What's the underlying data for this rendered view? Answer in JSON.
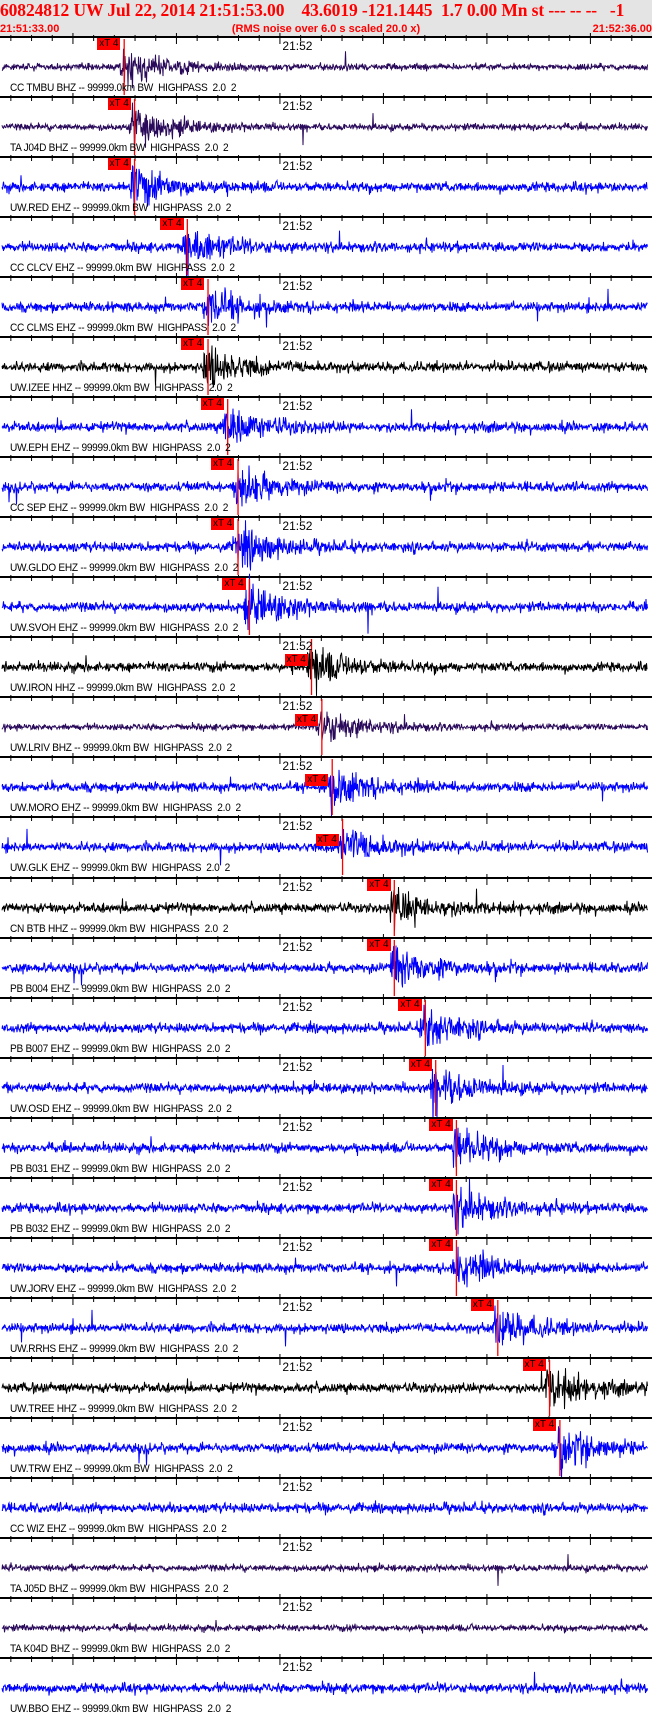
{
  "header": {
    "title": "60824812 UW Jul 22, 2014 21:51:53.00    43.6019 -121.1445  1.7 0.00 Mn st --- -- --   -1",
    "start_time": "21:51:33.00",
    "note": "(RMS noise over 6.0 s scaled 20.0 x)",
    "end_time": "21:52:36.00"
  },
  "colors": {
    "header_text": "#ff0000",
    "header_bg": "#e4e4e4",
    "pick": "#ff0000",
    "EHZ": "#0000ff",
    "HHZ": "#000000",
    "BHZ": "#2a0a5a"
  },
  "chart_data": {
    "type": "line",
    "subtype": "seismogram record section",
    "x_axis": {
      "range": [
        "21:51:33.00",
        "21:52:36.00"
      ],
      "tick_label": "21:52",
      "major_tick_interval_s": 10,
      "minor_tick_interval_s": 2
    },
    "pick_label": "xT 4",
    "traces": [
      {
        "label": "CC TMBU BHZ -- 99999.0km BW  HIGHPASS  2.0  2",
        "channel": "BHZ",
        "pick": "21:51:45.0"
      },
      {
        "label": "TA J04D BHZ -- 99999.0km BW  HIGHPASS  2.0  2",
        "channel": "BHZ",
        "pick": "21:51:46.0"
      },
      {
        "label": "UW.RED EHZ -- 99999.0km BW  HIGHPASS  2.0  2",
        "channel": "EHZ",
        "pick": "21:51:46.0"
      },
      {
        "label": "CC CLCV EHZ -- 99999.0km BW  HIGHPASS  2.0  2",
        "channel": "EHZ",
        "pick": "21:51:51.1"
      },
      {
        "label": "CC CLMS EHZ -- 99999.0km BW  HIGHPASS  2.0  2",
        "channel": "EHZ",
        "pick": "21:51:53.1"
      },
      {
        "label": "UW.IZEE HHZ -- 99999.0km BW  HIGHPASS  2.0  2",
        "channel": "HHZ",
        "pick": "21:51:53.1"
      },
      {
        "label": "UW.EPH EHZ -- 99999.0km BW  HIGHPASS  2.0  2",
        "channel": "EHZ",
        "pick": "21:51:55.0"
      },
      {
        "label": "CC SEP EHZ -- 99999.0km BW  HIGHPASS  2.0  2",
        "channel": "EHZ",
        "pick": "21:51:56.0"
      },
      {
        "label": "UW.GLDO EHZ -- 99999.0km BW  HIGHPASS  2.0  2",
        "channel": "EHZ",
        "pick": "21:51:56.0"
      },
      {
        "label": "UW.SVOH EHZ -- 99999.0km BW  HIGHPASS  2.0  2",
        "channel": "EHZ",
        "pick": "21:51:57.1"
      },
      {
        "label": "UW.IRON HHZ -- 99999.0km BW  HIGHPASS  2.0  2",
        "channel": "HHZ",
        "pick": "21:52:03.1"
      },
      {
        "label": "UW.LRIV BHZ -- 99999.0km BW  HIGHPASS  2.0  2",
        "channel": "BHZ",
        "pick": "21:52:04.1"
      },
      {
        "label": "UW.MORO EHZ -- 99999.0km BW  HIGHPASS  2.0  2",
        "channel": "EHZ",
        "pick": "21:52:05.1"
      },
      {
        "label": "UW.GLK EHZ -- 99999.0km BW  HIGHPASS  2.0  2",
        "channel": "EHZ",
        "pick": "21:52:06.1"
      },
      {
        "label": "CN BTB HHZ -- 99999.0km BW  HIGHPASS  2.0  2",
        "channel": "HHZ",
        "pick": "21:52:11.1"
      },
      {
        "label": "PB B004 EHZ -- 99999.0km BW  HIGHPASS  2.0  2",
        "channel": "EHZ",
        "pick": "21:52:11.1"
      },
      {
        "label": "PB B007 EHZ -- 99999.0km BW  HIGHPASS  2.0  2",
        "channel": "EHZ",
        "pick": "21:52:14.1"
      },
      {
        "label": "UW.OSD EHZ -- 99999.0km BW  HIGHPASS  2.0  2",
        "channel": "EHZ",
        "pick": "21:52:15.1"
      },
      {
        "label": "PB B031 EHZ -- 99999.0km BW  HIGHPASS  2.0  2",
        "channel": "EHZ",
        "pick": "21:52:17.1"
      },
      {
        "label": "PB B032 EHZ -- 99999.0km BW  HIGHPASS  2.0  2",
        "channel": "EHZ",
        "pick": "21:52:17.1"
      },
      {
        "label": "UW.JORV EHZ -- 99999.0km BW  HIGHPASS  2.0  2",
        "channel": "EHZ",
        "pick": "21:52:17.1"
      },
      {
        "label": "UW.RRHS EHZ -- 99999.0km BW  HIGHPASS  2.0  2",
        "channel": "EHZ",
        "pick": "21:52:21.1"
      },
      {
        "label": "UW.TREE HHZ -- 99999.0km BW  HIGHPASS  2.0  2",
        "channel": "HHZ",
        "pick": "21:52:26.1"
      },
      {
        "label": "UW.TRW EHZ -- 99999.0km BW  HIGHPASS  2.0  2",
        "channel": "EHZ",
        "pick": "21:52:27.1"
      },
      {
        "label": "CC WIZ EHZ -- 99999.0km BW  HIGHPASS  2.0  2",
        "channel": "EHZ",
        "pick": null
      },
      {
        "label": "TA J05D BHZ -- 99999.0km BW  HIGHPASS  2.0  2",
        "channel": "BHZ",
        "pick": null
      },
      {
        "label": "TA K04D BHZ -- 99999.0km BW  HIGHPASS  2.0  2",
        "channel": "BHZ",
        "pick": null
      },
      {
        "label": "UW.BBO EHZ -- 99999.0km BW  HIGHPASS  2.0  2",
        "channel": "EHZ",
        "pick": null
      }
    ]
  }
}
